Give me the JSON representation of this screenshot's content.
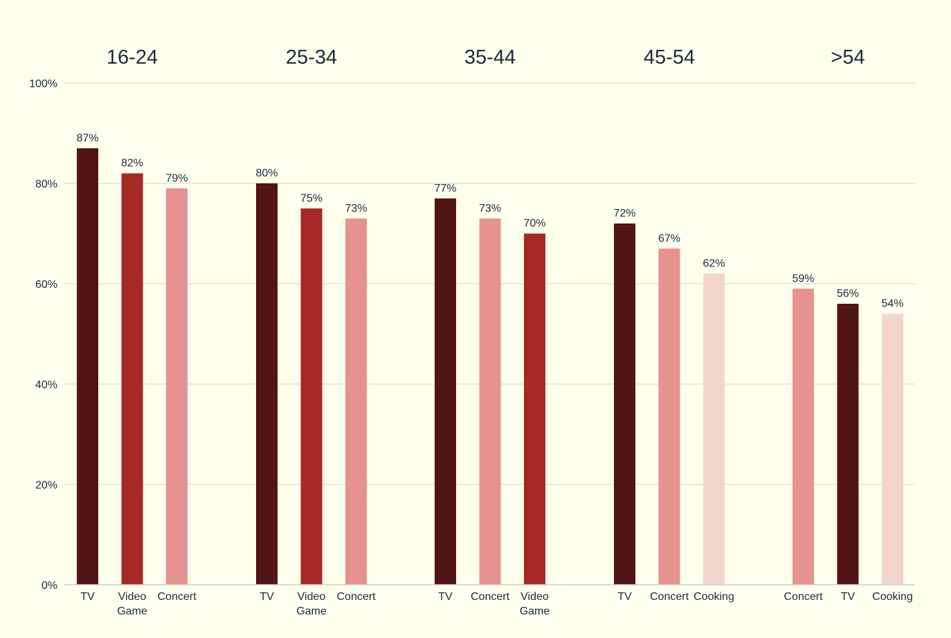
{
  "chart_data": {
    "type": "bar",
    "title": "",
    "xlabel": "",
    "ylabel": "",
    "ylim": [
      0,
      100
    ],
    "y_ticks": [
      "0%",
      "20%",
      "40%",
      "60%",
      "80%",
      "100%"
    ],
    "y_tick_values": [
      0,
      20,
      40,
      60,
      80,
      100
    ],
    "grid": true,
    "colors": {
      "TV": "#521414",
      "Video Game": "#A82826",
      "Concert": "#E59290",
      "Cooking": "#F3D5CE"
    },
    "groups": [
      {
        "name": "16-24",
        "bars": [
          {
            "category": "TV",
            "label_lines": [
              "TV"
            ],
            "value": 87,
            "value_label": "87%"
          },
          {
            "category": "Video Game",
            "label_lines": [
              "Video",
              "Game"
            ],
            "value": 82,
            "value_label": "82%"
          },
          {
            "category": "Concert",
            "label_lines": [
              "Concert"
            ],
            "value": 79,
            "value_label": "79%"
          }
        ]
      },
      {
        "name": "25-34",
        "bars": [
          {
            "category": "TV",
            "label_lines": [
              "TV"
            ],
            "value": 80,
            "value_label": "80%"
          },
          {
            "category": "Video Game",
            "label_lines": [
              "Video",
              "Game"
            ],
            "value": 75,
            "value_label": "75%"
          },
          {
            "category": "Concert",
            "label_lines": [
              "Concert"
            ],
            "value": 73,
            "value_label": "73%"
          }
        ]
      },
      {
        "name": "35-44",
        "bars": [
          {
            "category": "TV",
            "label_lines": [
              "TV"
            ],
            "value": 77,
            "value_label": "77%"
          },
          {
            "category": "Concert",
            "label_lines": [
              "Concert"
            ],
            "value": 73,
            "value_label": "73%"
          },
          {
            "category": "Video Game",
            "label_lines": [
              "Video",
              "Game"
            ],
            "value": 70,
            "value_label": "70%"
          }
        ]
      },
      {
        "name": "45-54",
        "bars": [
          {
            "category": "TV",
            "label_lines": [
              "TV"
            ],
            "value": 72,
            "value_label": "72%"
          },
          {
            "category": "Concert",
            "label_lines": [
              "Concert"
            ],
            "value": 67,
            "value_label": "67%"
          },
          {
            "category": "Cooking",
            "label_lines": [
              "Cooking"
            ],
            "value": 62,
            "value_label": "62%"
          }
        ]
      },
      {
        "name": ">54",
        "bars": [
          {
            "category": "Concert",
            "label_lines": [
              "Concert"
            ],
            "value": 59,
            "value_label": "59%"
          },
          {
            "category": "TV",
            "label_lines": [
              "TV"
            ],
            "value": 56,
            "value_label": "56%"
          },
          {
            "category": "Cooking",
            "label_lines": [
              "Cooking"
            ],
            "value": 54,
            "value_label": "54%"
          }
        ]
      }
    ]
  }
}
